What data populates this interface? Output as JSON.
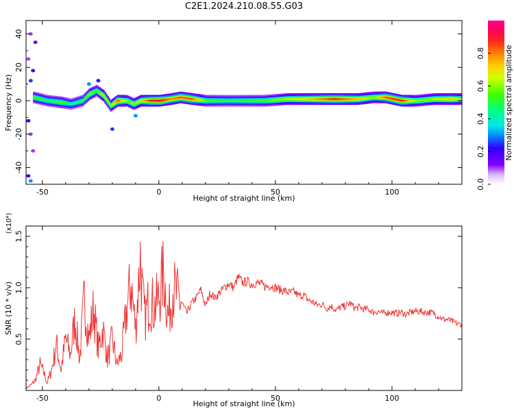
{
  "title": "C2E1.2024.210.08.55.G03",
  "colors": {
    "snr_line": "#ee3333",
    "axes": "#000000",
    "background": "#ffffff"
  },
  "chart_data": [
    {
      "type": "heatmap",
      "xlabel": "Height of straight line (km)",
      "ylabel": "Frequency (Hz)",
      "xlim": [
        -57,
        130
      ],
      "ylim": [
        -50,
        48
      ],
      "xticks": [
        -50,
        0,
        50,
        100
      ],
      "yticks": [
        -40,
        -20,
        0,
        20,
        40
      ],
      "colorbar": {
        "label": "Normalized spectral amplitude",
        "range": [
          0,
          1
        ],
        "ticks": [
          "0.0",
          "0.2",
          "0.4",
          "0.6",
          "0.8"
        ],
        "colormap": "rainbow (white→purple→blue→cyan→green→yellow→orange→red→magenta)"
      },
      "ridge": {
        "description": "narrow high-amplitude band near 0 Hz across all heights",
        "points": [
          {
            "x": -54,
            "f": 2,
            "a": 0.55
          },
          {
            "x": -48,
            "f": 0,
            "a": 0.5
          },
          {
            "x": -42,
            "f": -1,
            "a": 0.55
          },
          {
            "x": -38,
            "f": -2,
            "a": 0.45
          },
          {
            "x": -33,
            "f": 0,
            "a": 0.5
          },
          {
            "x": -30,
            "f": 4,
            "a": 0.6
          },
          {
            "x": -27,
            "f": 6,
            "a": 0.55
          },
          {
            "x": -24,
            "f": 3,
            "a": 0.65
          },
          {
            "x": -21,
            "f": -3,
            "a": 0.6
          },
          {
            "x": -18,
            "f": 0,
            "a": 0.85
          },
          {
            "x": -14,
            "f": 0,
            "a": 0.6
          },
          {
            "x": -11,
            "f": -2,
            "a": 0.6
          },
          {
            "x": -8,
            "f": 0,
            "a": 0.7
          },
          {
            "x": -4,
            "f": 0,
            "a": 0.9
          },
          {
            "x": 0,
            "f": 0,
            "a": 0.95
          },
          {
            "x": 5,
            "f": 1,
            "a": 0.8
          },
          {
            "x": 9,
            "f": 2,
            "a": 0.85
          },
          {
            "x": 14,
            "f": 1,
            "a": 0.85
          },
          {
            "x": 20,
            "f": 0,
            "a": 0.55
          },
          {
            "x": 30,
            "f": 0,
            "a": 0.5
          },
          {
            "x": 45,
            "f": 0,
            "a": 0.55
          },
          {
            "x": 55,
            "f": 1,
            "a": 0.65
          },
          {
            "x": 65,
            "f": 1,
            "a": 0.75
          },
          {
            "x": 75,
            "f": 1,
            "a": 0.9
          },
          {
            "x": 85,
            "f": 1,
            "a": 0.75
          },
          {
            "x": 92,
            "f": 2,
            "a": 0.6
          },
          {
            "x": 97,
            "f": 2,
            "a": 0.85
          },
          {
            "x": 104,
            "f": 0,
            "a": 0.9
          },
          {
            "x": 110,
            "f": 0,
            "a": 0.6
          },
          {
            "x": 118,
            "f": 1,
            "a": 0.65
          },
          {
            "x": 125,
            "f": 1,
            "a": 0.75
          },
          {
            "x": 130,
            "f": 1,
            "a": 0.6
          }
        ],
        "scatter_noise": [
          {
            "x": -55,
            "f": 40,
            "a": 0.1
          },
          {
            "x": -53,
            "f": 35,
            "a": 0.15
          },
          {
            "x": -56,
            "f": 25,
            "a": 0.1
          },
          {
            "x": -54,
            "f": 18,
            "a": 0.2
          },
          {
            "x": -55,
            "f": 12,
            "a": 0.25
          },
          {
            "x": -56,
            "f": -12,
            "a": 0.2
          },
          {
            "x": -55,
            "f": -20,
            "a": 0.1
          },
          {
            "x": -54,
            "f": -30,
            "a": 0.1
          },
          {
            "x": -56,
            "f": -45,
            "a": 0.2
          },
          {
            "x": -55,
            "f": -48,
            "a": 0.3
          },
          {
            "x": -20,
            "f": -17,
            "a": 0.25
          },
          {
            "x": -10,
            "f": -9,
            "a": 0.3
          },
          {
            "x": -30,
            "f": 10,
            "a": 0.3
          },
          {
            "x": -26,
            "f": 12,
            "a": 0.2
          }
        ]
      }
    },
    {
      "type": "line",
      "xlabel": "Height of straight line (km)",
      "ylabel": "SNR (10 * v/v)",
      "y_multiplier": "(x10⁴)",
      "xlim": [
        -57,
        130
      ],
      "ylim": [
        0,
        16000
      ],
      "xticks": [
        -50,
        0,
        50,
        100
      ],
      "yticks": [
        5000,
        10000,
        15000
      ],
      "ytick_labels": [
        "0.5",
        "1.0",
        "1.5"
      ],
      "series": [
        {
          "x": [
            -57,
            -55,
            -53,
            -51,
            -49,
            -48,
            -46,
            -44,
            -42,
            -40,
            -38,
            -36,
            -34,
            -32,
            -30,
            -28,
            -26,
            -24,
            -22,
            -20,
            -18,
            -16,
            -14,
            -12,
            -10,
            -8,
            -7,
            -6,
            -4,
            -2,
            0,
            2,
            4,
            6,
            8,
            10,
            12,
            14,
            16,
            18,
            20,
            22,
            24,
            26,
            28,
            30,
            32,
            34,
            36,
            38,
            40,
            42,
            44,
            46,
            48,
            50,
            52,
            54,
            56,
            58,
            60,
            62,
            64,
            66,
            68,
            70,
            72,
            74,
            76,
            78,
            80,
            82,
            84,
            86,
            88,
            90,
            92,
            94,
            96,
            98,
            100,
            102,
            104,
            106,
            108,
            110,
            112,
            114,
            116,
            118,
            120,
            122,
            124,
            126,
            128,
            130
          ],
          "y": [
            200,
            500,
            1000,
            2500,
            1500,
            700,
            2000,
            4500,
            2000,
            5000,
            3500,
            7000,
            3000,
            9000,
            5000,
            8000,
            4000,
            6000,
            3000,
            5000,
            2500,
            3500,
            7500,
            10500,
            6000,
            13000,
            9000,
            7000,
            9000,
            8000,
            9000,
            11500,
            7000,
            10000,
            9000,
            8500,
            7500,
            8500,
            9000,
            9800,
            8200,
            9500,
            9000,
            9500,
            10000,
            10400,
            10000,
            11000,
            10500,
            10600,
            10300,
            10500,
            10300,
            10100,
            10200,
            10000,
            9800,
            9700,
            9500,
            9600,
            9200,
            9300,
            8800,
            8600,
            8300,
            8400,
            8000,
            8200,
            7800,
            8100,
            8200,
            8500,
            8000,
            8100,
            7900,
            7900,
            7600,
            7700,
            7500,
            7600,
            7600,
            7500,
            7600,
            7400,
            7600,
            7700,
            7700,
            7600,
            7600,
            7500,
            7200,
            6900,
            6900,
            6700,
            6500,
            6400
          ]
        }
      ]
    }
  ]
}
